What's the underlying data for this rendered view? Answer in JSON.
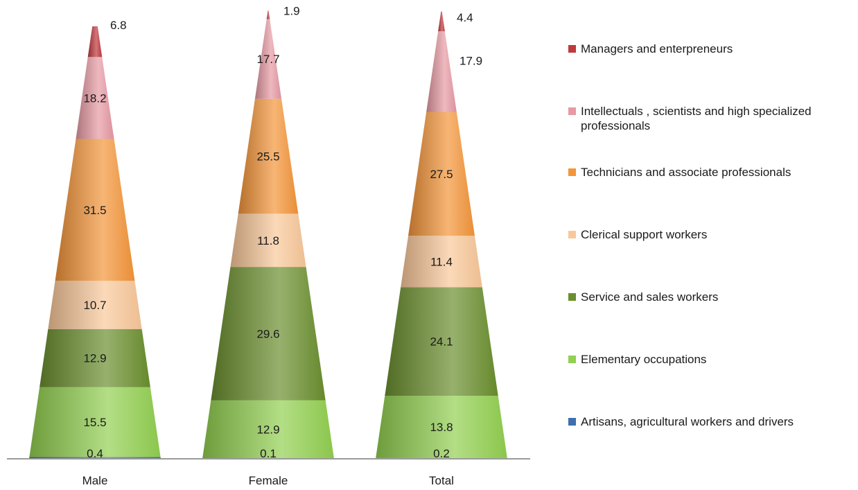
{
  "chart_data": {
    "type": "bar",
    "subtype": "stacked-cone",
    "categories": [
      "Male",
      "Female",
      "Total"
    ],
    "series": [
      {
        "name": "Artisans, agricultural workers and drivers",
        "values": [
          0.4,
          0.1,
          0.2
        ],
        "color": "#3f6fae"
      },
      {
        "name": "Elementary occupations",
        "values": [
          15.5,
          12.9,
          13.8
        ],
        "color": "#92d050"
      },
      {
        "name": "Service and sales workers",
        "values": [
          12.9,
          29.6,
          24.1
        ],
        "color": "#6b8f2e"
      },
      {
        "name": "Clerical support workers",
        "values": [
          10.7,
          11.8,
          11.4
        ],
        "color": "#f9c89a"
      },
      {
        "name": "Technicians and associate professionals",
        "values": [
          31.5,
          25.5,
          27.5
        ],
        "color": "#f4953a"
      },
      {
        "name": "Intellectuals , scientists and high specialized professionals",
        "values": [
          18.2,
          17.7,
          17.9
        ],
        "color": "#e79aa4"
      },
      {
        "name": "Managers and enterpreneurs",
        "values": [
          6.8,
          1.9,
          4.4
        ],
        "color": "#c0393e"
      }
    ],
    "legend_order": [
      6,
      5,
      4,
      3,
      2,
      1,
      0
    ],
    "legend_position": "right",
    "grid": false,
    "title": "",
    "xlabel": "",
    "ylabel": ""
  }
}
